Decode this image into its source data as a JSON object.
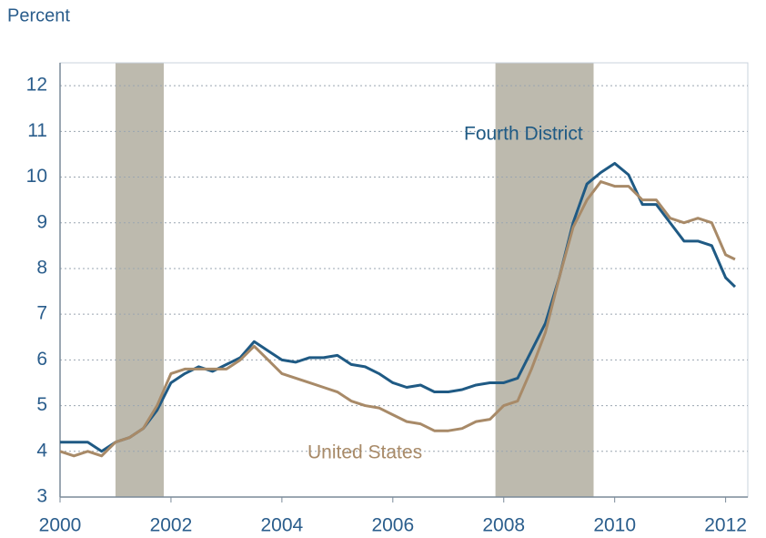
{
  "chart_data": {
    "type": "line",
    "y_label": "Percent",
    "x": [
      2000.0,
      2000.25,
      2000.5,
      2000.75,
      2001.0,
      2001.25,
      2001.5,
      2001.75,
      2002.0,
      2002.25,
      2002.5,
      2002.75,
      2003.0,
      2003.25,
      2003.5,
      2003.75,
      2004.0,
      2004.25,
      2004.5,
      2004.75,
      2005.0,
      2005.25,
      2005.5,
      2005.75,
      2006.0,
      2006.25,
      2006.5,
      2006.75,
      2007.0,
      2007.25,
      2007.5,
      2007.75,
      2008.0,
      2008.25,
      2008.5,
      2008.75,
      2009.0,
      2009.25,
      2009.5,
      2009.75,
      2010.0,
      2010.25,
      2010.5,
      2010.75,
      2011.0,
      2011.25,
      2011.5,
      2011.75,
      2012.0,
      2012.17
    ],
    "series": [
      {
        "name": "Fourth District",
        "color": "#1f5a84",
        "values": [
          4.2,
          4.2,
          4.2,
          4.0,
          4.2,
          4.3,
          4.5,
          4.9,
          5.5,
          5.7,
          5.85,
          5.75,
          5.9,
          6.05,
          6.4,
          6.2,
          6.0,
          5.95,
          6.05,
          6.05,
          6.1,
          5.9,
          5.85,
          5.7,
          5.5,
          5.4,
          5.45,
          5.3,
          5.3,
          5.35,
          5.45,
          5.5,
          5.5,
          5.6,
          6.2,
          6.8,
          7.8,
          9.0,
          9.85,
          10.1,
          10.3,
          10.05,
          9.4,
          9.4,
          9.0,
          8.6,
          8.6,
          8.5,
          7.8,
          7.6
        ]
      },
      {
        "name": "United States",
        "color": "#a88a68",
        "values": [
          4.0,
          3.9,
          4.0,
          3.9,
          4.2,
          4.3,
          4.5,
          5.0,
          5.7,
          5.8,
          5.8,
          5.8,
          5.8,
          6.0,
          6.3,
          6.0,
          5.7,
          5.6,
          5.5,
          5.4,
          5.3,
          5.1,
          5.0,
          4.95,
          4.8,
          4.65,
          4.6,
          4.45,
          4.45,
          4.5,
          4.65,
          4.7,
          5.0,
          5.1,
          5.8,
          6.6,
          7.8,
          8.9,
          9.5,
          9.9,
          9.8,
          9.8,
          9.5,
          9.5,
          9.1,
          9.0,
          9.1,
          9.0,
          8.3,
          8.2
        ]
      }
    ],
    "recessions": [
      [
        2001.0,
        2001.87
      ],
      [
        2007.85,
        2009.62
      ]
    ],
    "recession_color": "#bdbaae",
    "xlim": [
      2000,
      2012.4
    ],
    "xticks": [
      2000,
      2002,
      2004,
      2006,
      2008,
      2010,
      2012
    ],
    "ylim": [
      3,
      12.5
    ],
    "yticks": [
      3,
      4,
      5,
      6,
      7,
      8,
      9,
      10,
      11,
      12
    ],
    "grid": true
  }
}
